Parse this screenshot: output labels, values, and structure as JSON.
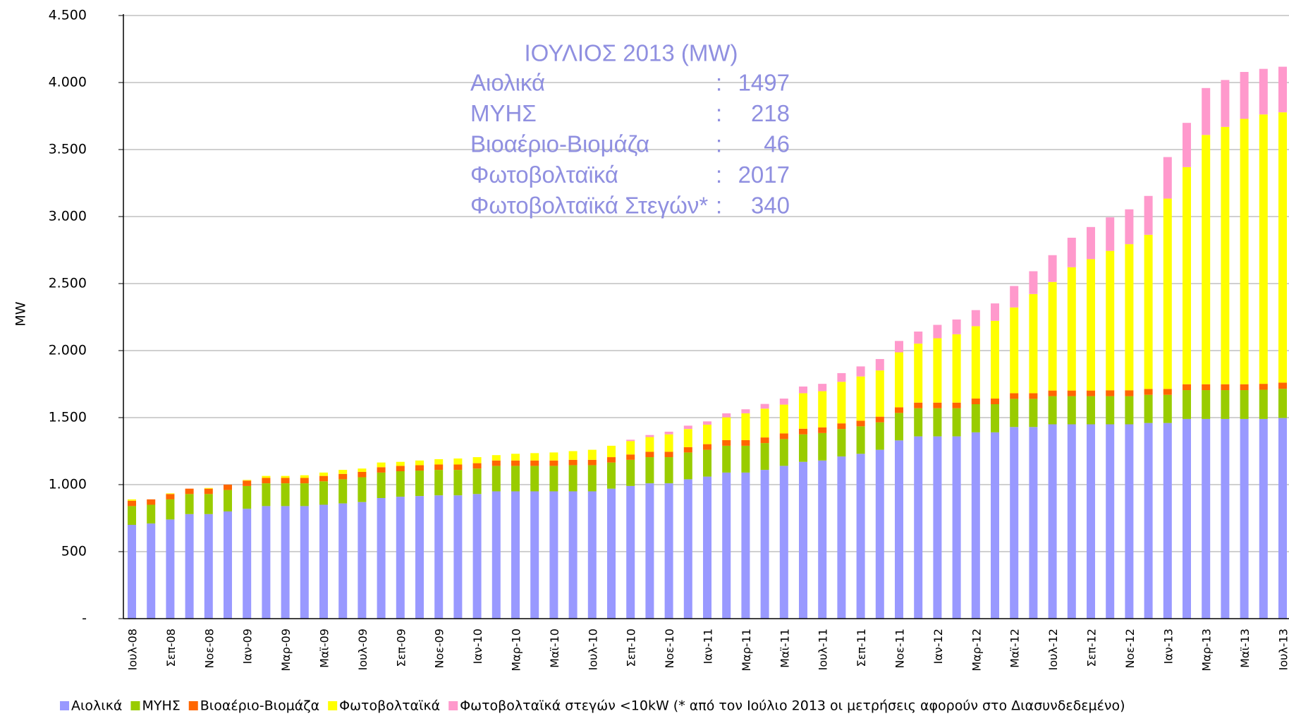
{
  "chart_data": {
    "type": "stacked_bar",
    "y_label": "MW",
    "ylim": [
      0,
      4500
    ],
    "yticks": [
      {
        "value": 0,
        "label": "-"
      },
      500,
      {
        "value": 1000,
        "label": "1.000"
      },
      {
        "value": 1500,
        "label": "1.500"
      },
      {
        "value": 2000,
        "label": "2.000"
      },
      {
        "value": 2500,
        "label": "2.500"
      },
      {
        "value": 3000,
        "label": "3.000"
      },
      {
        "value": 3500,
        "label": "3.500"
      },
      {
        "value": 4000,
        "label": "4.000"
      },
      {
        "value": 4500,
        "label": "4.500"
      }
    ],
    "grid": true,
    "legend": "bottom",
    "categories": [
      "Ιουλ-08",
      null,
      "Σεπ-08",
      null,
      "Νοε-08",
      null,
      "Ιαν-09",
      null,
      "Μαρ-09",
      null,
      "Μαϊ-09",
      null,
      "Ιουλ-09",
      null,
      "Σεπ-09",
      null,
      "Νοε-09",
      null,
      "Ιαν-10",
      null,
      "Μαρ-10",
      null,
      "Μαϊ-10",
      null,
      "Ιουλ-10",
      null,
      "Σεπ-10",
      null,
      "Νοε-10",
      null,
      "Ιαν-11",
      null,
      "Μαρ-11",
      null,
      "Μαϊ-11",
      null,
      "Ιουλ-11",
      null,
      "Σεπ-11",
      null,
      "Νοε-11",
      null,
      "Ιαν-12",
      null,
      "Μαρ-12",
      null,
      "Μαϊ-12",
      null,
      "Ιουλ-12",
      null,
      "Σεπ-12",
      null,
      "Νοε-12",
      null,
      "Ιαν-13",
      null,
      "Μαρ-13",
      null,
      "Μαϊ-13",
      null,
      "Ιουλ-13"
    ],
    "series": [
      {
        "name": "Αιολικά",
        "color": "#9999ff",
        "values": [
          700,
          710,
          740,
          780,
          780,
          800,
          820,
          840,
          840,
          840,
          850,
          860,
          870,
          900,
          910,
          915,
          920,
          920,
          930,
          950,
          950,
          950,
          950,
          950,
          950,
          970,
          990,
          1010,
          1010,
          1040,
          1060,
          1090,
          1090,
          1110,
          1140,
          1170,
          1180,
          1210,
          1230,
          1260,
          1330,
          1360,
          1360,
          1360,
          1390,
          1390,
          1430,
          1430,
          1450,
          1450,
          1450,
          1450,
          1450,
          1460,
          1460,
          1490,
          1490,
          1490,
          1490,
          1490,
          1497
        ]
      },
      {
        "name": "ΜΥΗΣ",
        "color": "#99cc00",
        "values": [
          140,
          140,
          150,
          150,
          150,
          160,
          170,
          170,
          170,
          170,
          175,
          180,
          185,
          190,
          190,
          190,
          190,
          190,
          190,
          190,
          190,
          190,
          190,
          195,
          195,
          195,
          195,
          195,
          195,
          200,
          200,
          200,
          200,
          200,
          200,
          205,
          205,
          205,
          205,
          205,
          205,
          210,
          210,
          210,
          210,
          210,
          210,
          210,
          210,
          210,
          210,
          210,
          210,
          210,
          210,
          215,
          215,
          215,
          215,
          218,
          218
        ]
      },
      {
        "name": "Βιοαέριο-Βιομάζα",
        "color": "#ff6600",
        "values": [
          40,
          40,
          40,
          40,
          40,
          40,
          40,
          40,
          40,
          40,
          40,
          40,
          40,
          40,
          40,
          40,
          40,
          40,
          40,
          40,
          40,
          40,
          40,
          40,
          40,
          40,
          40,
          40,
          40,
          40,
          42,
          42,
          42,
          42,
          42,
          42,
          42,
          42,
          42,
          42,
          42,
          42,
          42,
          42,
          42,
          42,
          42,
          42,
          42,
          42,
          42,
          44,
          44,
          44,
          44,
          44,
          44,
          44,
          44,
          44,
          46
        ]
      },
      {
        "name": "Φωτοβολταϊκά",
        "color": "#ffff00",
        "values": [
          10,
          0,
          5,
          0,
          5,
          0,
          5,
          15,
          15,
          20,
          25,
          30,
          25,
          35,
          30,
          35,
          40,
          45,
          45,
          40,
          50,
          55,
          60,
          65,
          75,
          85,
          100,
          110,
          130,
          135,
          145,
          170,
          200,
          215,
          215,
          265,
          270,
          310,
          330,
          345,
          410,
          440,
          480,
          510,
          540,
          580,
          640,
          740,
          810,
          920,
          980,
          1040,
          1090,
          1150,
          1420,
          1620,
          1860,
          1920,
          1980,
          2010,
          2017
        ]
      },
      {
        "name": "Φωτοβολταϊκά στεγών <10kW (* από τον Ιούλιο 2013 οι μετρήσεις αφορούν στο Διασυνδεδεμένο)",
        "color": "#ff99cc",
        "values": [
          0,
          0,
          0,
          0,
          0,
          0,
          0,
          0,
          0,
          0,
          0,
          0,
          0,
          0,
          0,
          0,
          0,
          0,
          0,
          0,
          0,
          0,
          0,
          0,
          0,
          0,
          10,
          15,
          20,
          25,
          25,
          30,
          30,
          35,
          45,
          50,
          55,
          65,
          75,
          85,
          85,
          90,
          100,
          110,
          120,
          130,
          160,
          170,
          200,
          220,
          240,
          250,
          260,
          290,
          310,
          330,
          350,
          350,
          350,
          340,
          340
        ]
      }
    ],
    "annotation": {
      "title": "ΙΟΥΛΙΟΣ 2013 (MW)",
      "separator": ":",
      "rows": [
        {
          "label": "Αιολικά",
          "value": 1497
        },
        {
          "label": "ΜΥΗΣ",
          "value": 218
        },
        {
          "label": "Βιοαέριο-Βιομάζα",
          "value": 46
        },
        {
          "label": "Φωτοβολταϊκά",
          "value": 2017
        },
        {
          "label": "Φωτοβολταϊκά Στεγών*",
          "value": 340
        }
      ]
    }
  }
}
